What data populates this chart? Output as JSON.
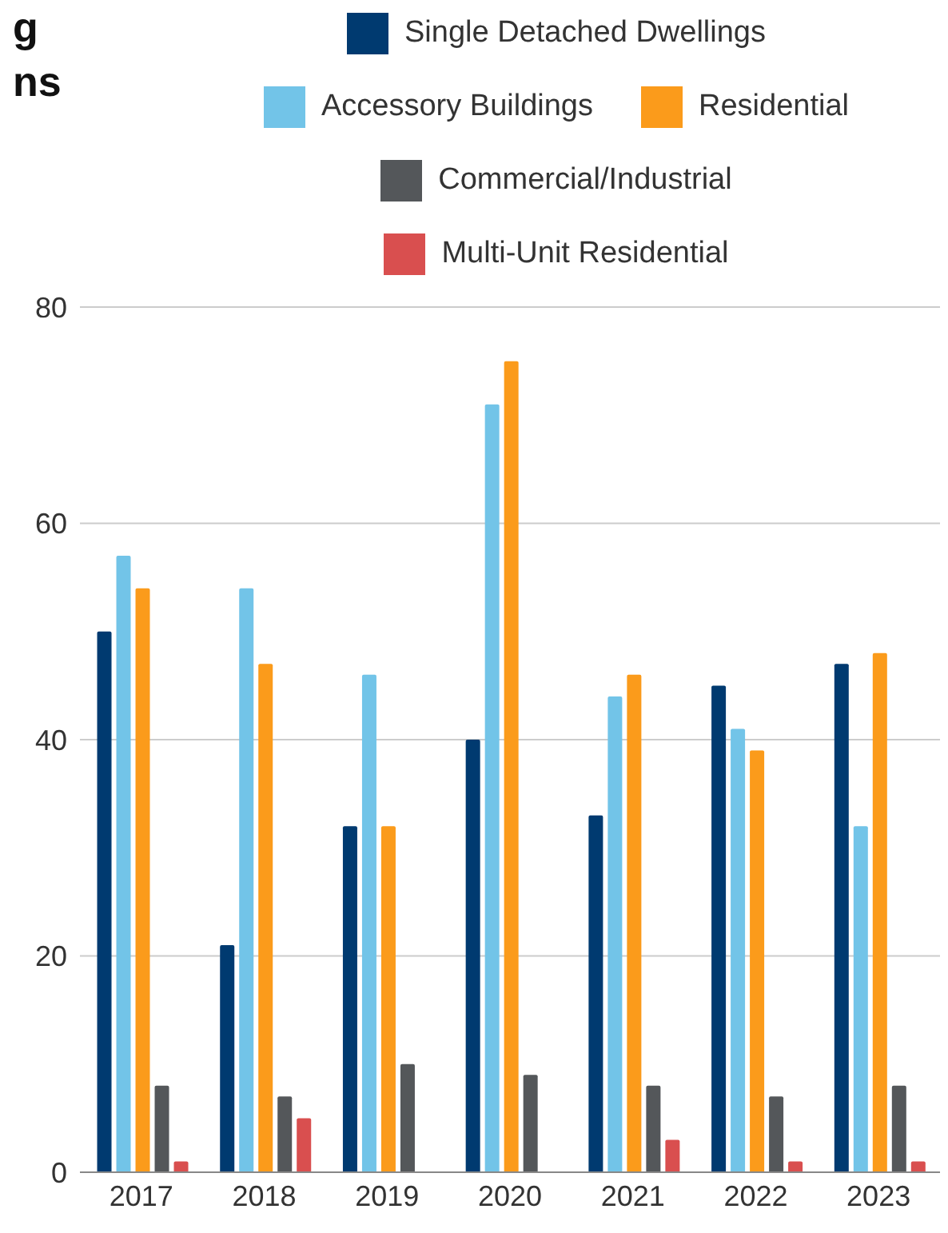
{
  "chart_data": {
    "type": "bar",
    "title": "g\nns",
    "categories": [
      "2017",
      "2018",
      "2019",
      "2020",
      "2021",
      "2022",
      "2023"
    ],
    "series": [
      {
        "name": "Single Detached Dwellings",
        "color": "#003a70",
        "values": [
          50,
          21,
          32,
          40,
          33,
          45,
          47
        ]
      },
      {
        "name": "Accessory Buildings",
        "color": "#72c4e8",
        "values": [
          57,
          54,
          46,
          71,
          44,
          41,
          32
        ]
      },
      {
        "name": "Residential",
        "color": "#fb9b1b",
        "values": [
          54,
          47,
          32,
          75,
          46,
          39,
          48
        ]
      },
      {
        "name": "Commercial/Industrial",
        "color": "#54575a",
        "values": [
          8,
          7,
          10,
          9,
          8,
          7,
          8
        ]
      },
      {
        "name": "Multi-Unit Residential",
        "color": "#d94f4f",
        "values": [
          1,
          5,
          0,
          0,
          3,
          1,
          1
        ]
      }
    ],
    "ylim": [
      0,
      80
    ],
    "yticks": [
      0,
      20,
      40,
      60,
      80
    ],
    "grid": "y",
    "legend": "top"
  }
}
